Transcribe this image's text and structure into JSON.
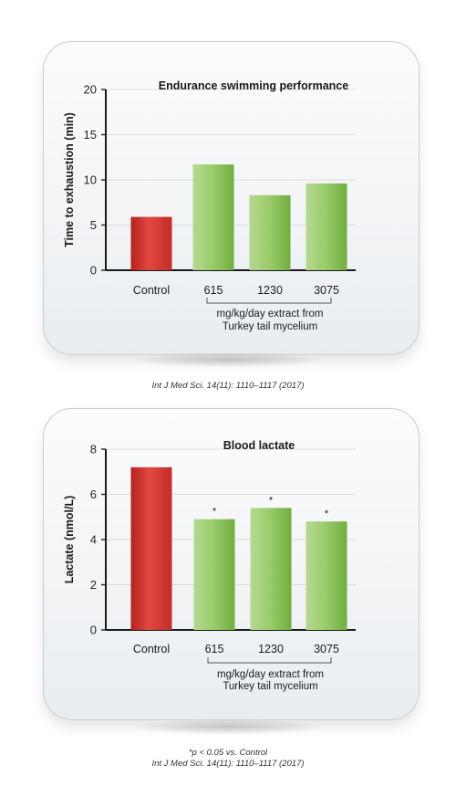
{
  "chart_data": [
    {
      "type": "bar",
      "title": "Endurance swimming performance",
      "ylabel": "Time to exhaustion (min)",
      "xlabel": "",
      "categories": [
        "Control",
        "615",
        "1230",
        "3075"
      ],
      "values": [
        5.9,
        11.7,
        8.3,
        9.6
      ],
      "ylim": [
        0,
        20
      ],
      "yticks": [
        "0",
        "5",
        "10",
        "15",
        "20"
      ],
      "grid": true,
      "group_label": [
        "mg/kg/day extract from",
        "Turkey tail mycelium"
      ],
      "significance": [
        "",
        "",
        "",
        ""
      ],
      "colors": {
        "control": "#d93a34",
        "treatment": "#8ac65a"
      }
    },
    {
      "type": "bar",
      "title": "Blood lactate",
      "ylabel": "Lactate (nmol/L)",
      "xlabel": "",
      "categories": [
        "Control",
        "615",
        "1230",
        "3075"
      ],
      "values": [
        7.2,
        4.9,
        5.4,
        4.8
      ],
      "ylim": [
        0,
        8
      ],
      "yticks": [
        "0",
        "2",
        "4",
        "6",
        "8"
      ],
      "grid": true,
      "group_label": [
        "mg/kg/day extract from",
        "Turkey tail mycelium"
      ],
      "significance": [
        "",
        "*",
        "*",
        "*"
      ],
      "colors": {
        "control": "#d93a34",
        "treatment": "#8ac65a"
      }
    }
  ],
  "citations": {
    "first": "Int J Med Sci. 14(11): 1110–1117 (2017)",
    "footnote": "*p < 0.05 vs. Control",
    "second": "Int J Med Sci. 14(11): 1110–1117 (2017)"
  }
}
